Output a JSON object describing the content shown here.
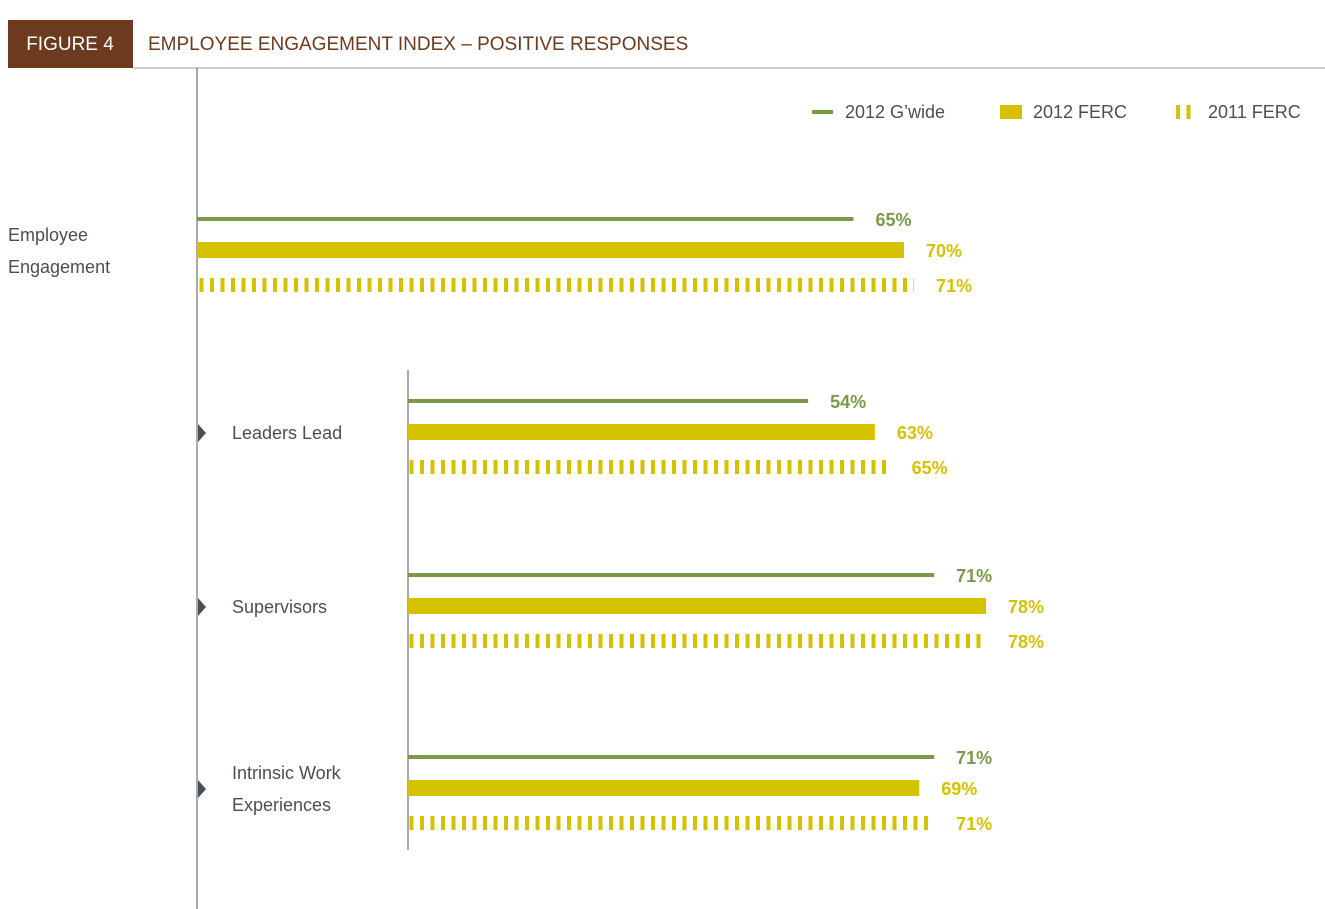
{
  "chart_data": [
    {
      "type": "bar",
      "figure_label": "FIGURE 4",
      "title": "EMPLOYEE ENGAGEMENT INDEX – POSITIVE RESPONSES",
      "categories": [
        "Employee Engagement"
      ],
      "xlim": [
        0,
        100
      ],
      "series": [
        {
          "name": "2012 G’wide",
          "color": "#7a9a4a",
          "style": "line",
          "values": [
            65
          ],
          "value_labels": [
            "65%"
          ]
        },
        {
          "name": "2012 FERC",
          "color": "#d4c200",
          "style": "bar",
          "values": [
            70
          ],
          "value_labels": [
            "70%"
          ]
        },
        {
          "name": "2011 FERC",
          "color": "#d4c200",
          "style": "striped",
          "values": [
            71
          ],
          "value_labels": [
            "71%"
          ]
        }
      ]
    },
    {
      "type": "bar",
      "categories": [
        "Leaders Lead",
        "Supervisors",
        "Intrinsic Work Experiences"
      ],
      "xlim": [
        0,
        100
      ],
      "series": [
        {
          "color": "#7a9a4a",
          "style": "line",
          "values": [
            54,
            71,
            71
          ],
          "value_labels": [
            "54%",
            "71%",
            "71%"
          ]
        },
        {
          "color": "#d4c200",
          "style": "bar",
          "values": [
            63,
            78,
            69
          ],
          "value_labels": [
            "63%",
            "78%",
            "69%"
          ]
        },
        {
          "color": "#d4c200",
          "style": "striped",
          "values": [
            65,
            78,
            71
          ],
          "value_labels": [
            "65%",
            "78%",
            "71%"
          ]
        }
      ]
    }
  ]
}
